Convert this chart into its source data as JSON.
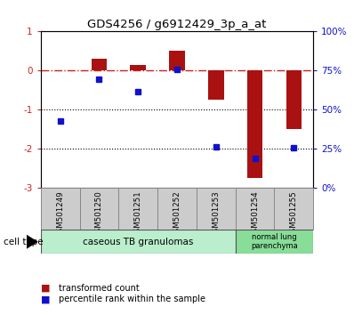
{
  "title": "GDS4256 / g6912429_3p_a_at",
  "samples": [
    "GSM501249",
    "GSM501250",
    "GSM501251",
    "GSM501252",
    "GSM501253",
    "GSM501254",
    "GSM501255"
  ],
  "red_bars": [
    0.0,
    0.3,
    0.15,
    0.5,
    -0.75,
    -2.75,
    -1.5
  ],
  "blue_dots": [
    -1.3,
    -0.22,
    -0.55,
    0.02,
    -1.95,
    -2.25,
    -1.97
  ],
  "ylim_left": [
    -3,
    1
  ],
  "ylim_right": [
    0,
    100
  ],
  "left_yticks": [
    -3,
    -2,
    -1,
    0,
    1
  ],
  "right_yticks": [
    0,
    25,
    50,
    75,
    100
  ],
  "right_yticklabels": [
    "0%",
    "25%",
    "50%",
    "75%",
    "100%"
  ],
  "bar_color": "#aa1111",
  "dot_color": "#1111cc",
  "hline_color": "#cc2222",
  "cell_type_group1_label": "caseous TB granulomas",
  "cell_type_group1_color": "#bbeecc",
  "cell_type_group2_label": "normal lung\nparenchyma",
  "cell_type_group2_color": "#88dd99",
  "legend_label_red": "transformed count",
  "legend_label_blue": "percentile rank within the sample",
  "cell_type_label": "cell type",
  "plot_bg": "#ffffff",
  "sample_box_color": "#cccccc",
  "sample_box_edge": "#888888"
}
